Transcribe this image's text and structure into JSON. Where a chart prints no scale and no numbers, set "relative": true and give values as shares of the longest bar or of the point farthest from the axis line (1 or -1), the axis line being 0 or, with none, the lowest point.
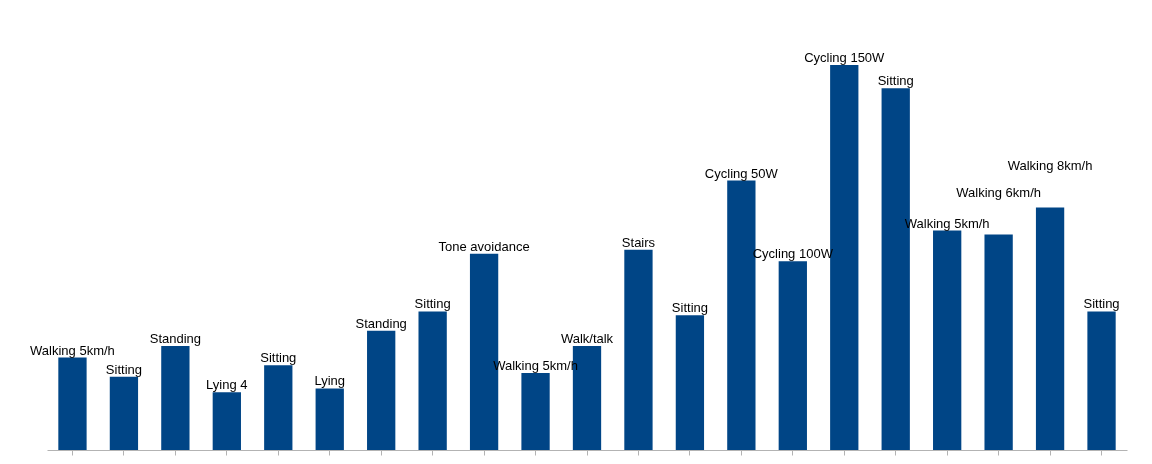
{
  "chart_data": {
    "type": "bar",
    "relative": true,
    "color": "#004586",
    "categories": [
      "Walking 5km/h",
      "Sitting",
      "Standing",
      "Lying 4",
      "Sitting",
      "Lying",
      "Standing",
      "Sitting",
      "Tone avoidance",
      "Walking 5km/h",
      "Walk/talk",
      "Stairs",
      "Sitting",
      "Cycling 50W",
      "Cycling 100W",
      "Cycling 150W",
      "Sitting",
      "Walking 5km/h",
      "Walking 6km/h",
      "Walking 8km/h",
      "Sitting"
    ],
    "values": [
      0.24,
      0.19,
      0.27,
      0.15,
      0.22,
      0.16,
      0.31,
      0.36,
      0.51,
      0.2,
      0.27,
      0.52,
      0.35,
      0.7,
      0.49,
      1,
      0.94,
      0.57,
      0.56,
      0.63,
      0.36
    ]
  }
}
